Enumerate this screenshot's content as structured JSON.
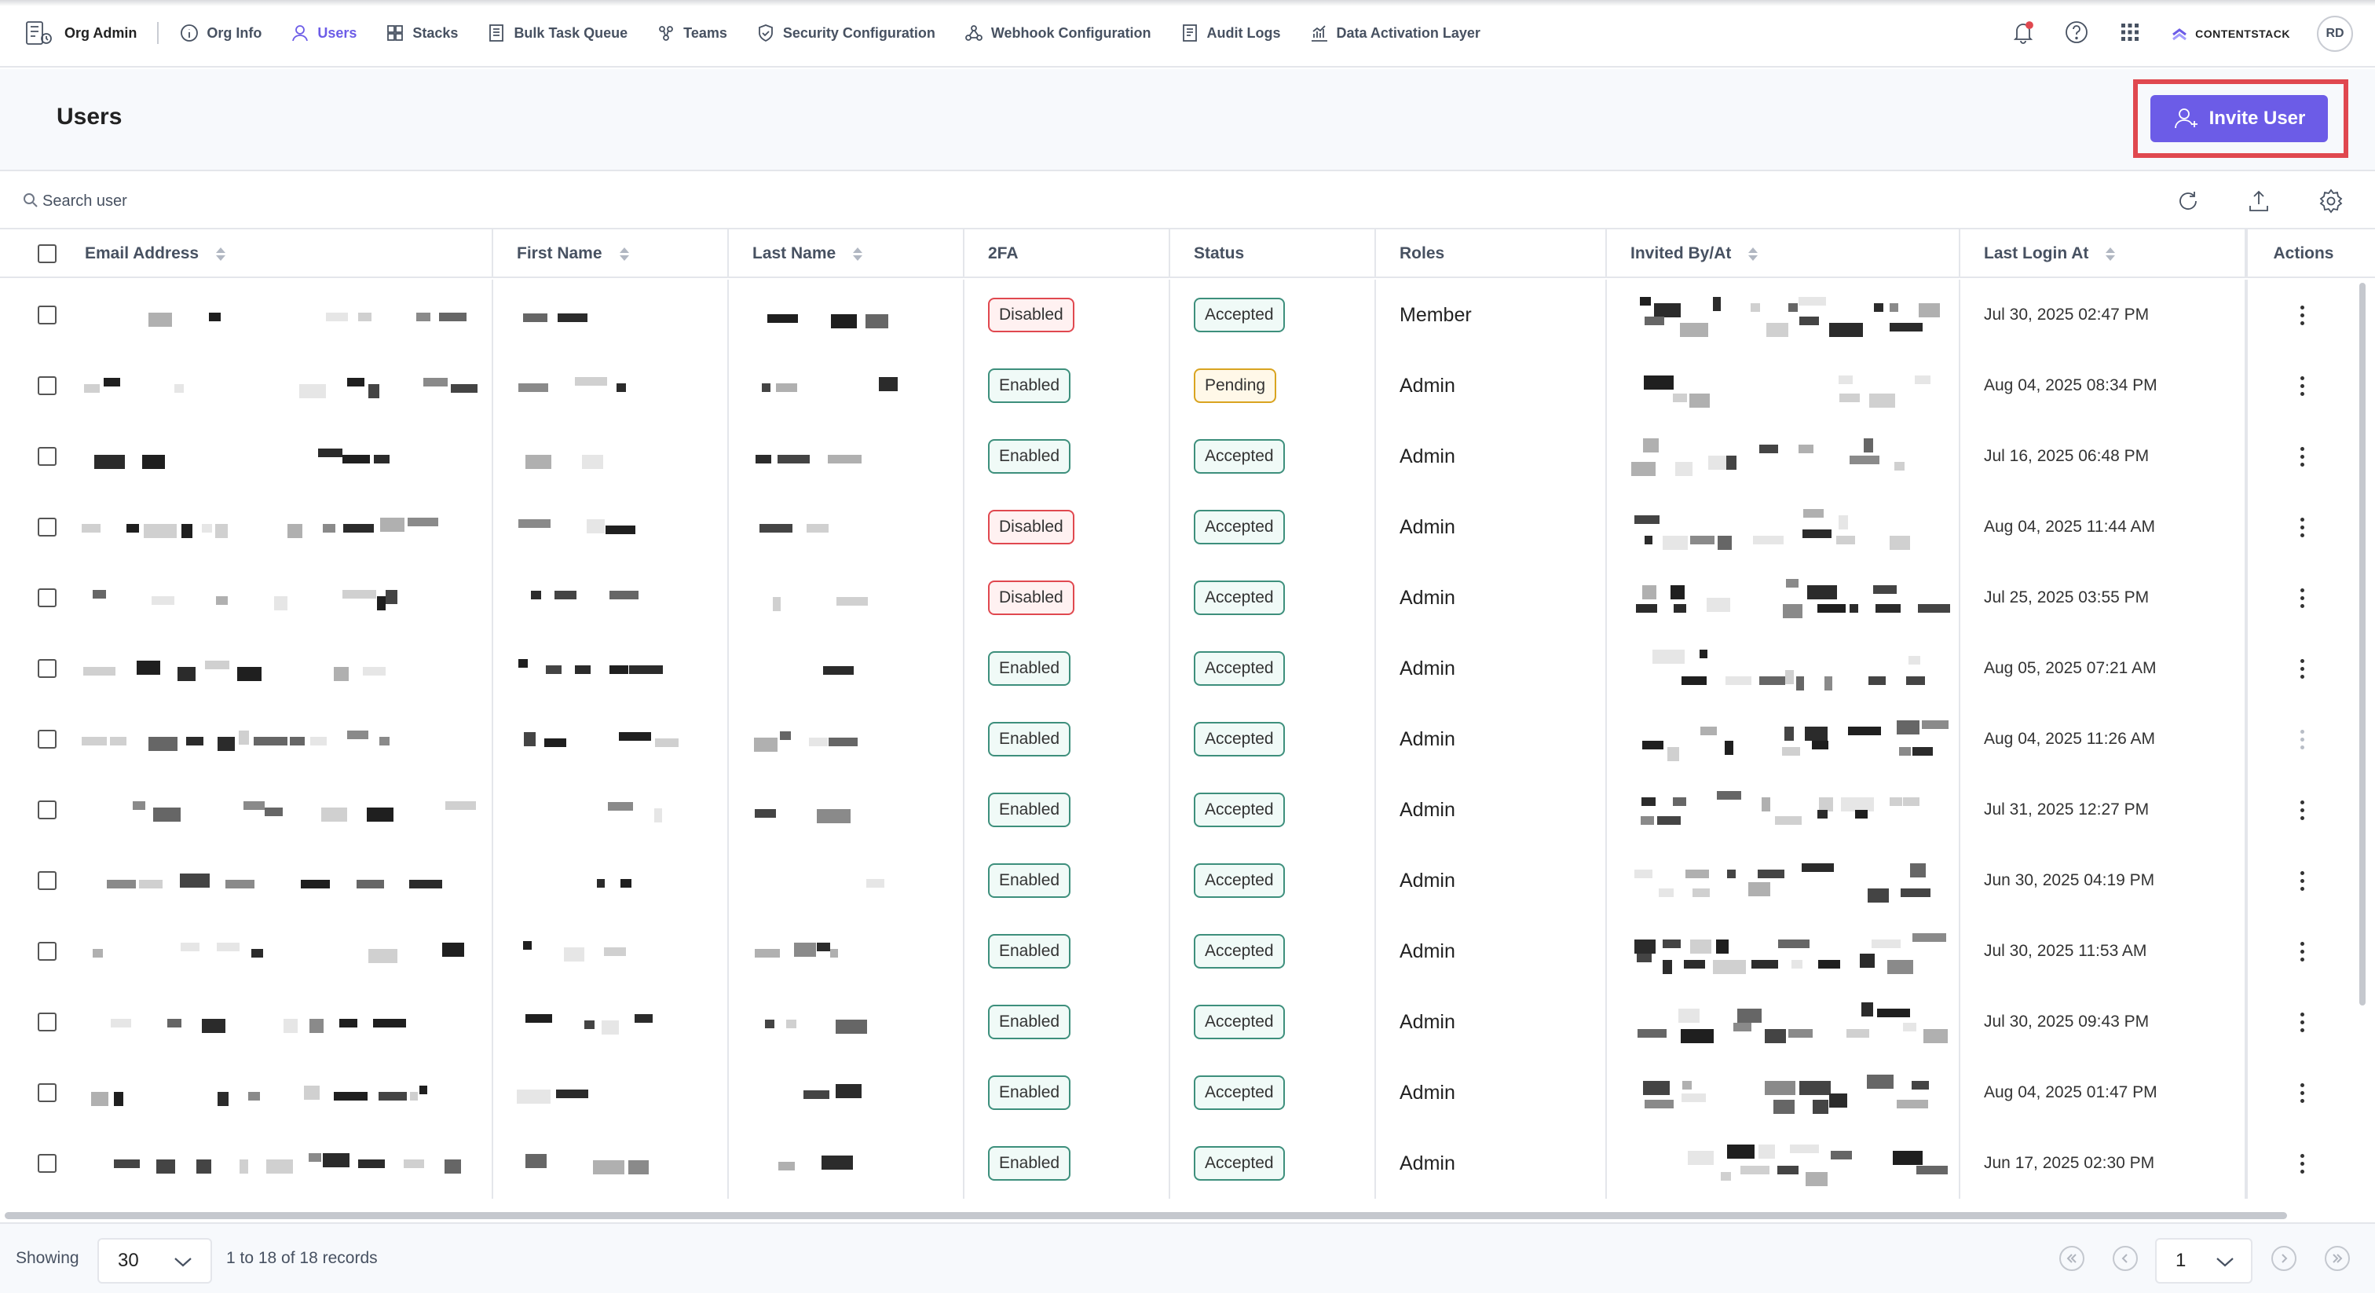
{
  "nav": {
    "brand": "Org Admin",
    "items": [
      {
        "label": "Org Info",
        "icon": "info-icon"
      },
      {
        "label": "Users",
        "icon": "user-icon",
        "active": true
      },
      {
        "label": "Stacks",
        "icon": "stacks-icon"
      },
      {
        "label": "Bulk Task Queue",
        "icon": "queue-icon"
      },
      {
        "label": "Teams",
        "icon": "teams-icon"
      },
      {
        "label": "Security Configuration",
        "icon": "shield-icon"
      },
      {
        "label": "Webhook Configuration",
        "icon": "webhook-icon"
      },
      {
        "label": "Audit Logs",
        "icon": "audit-log-icon"
      },
      {
        "label": "Data Activation Layer",
        "icon": "chart-icon"
      }
    ],
    "logo_text": "CONTENTSTACK",
    "avatar_initials": "RD"
  },
  "header": {
    "title": "Users",
    "invite_label": "Invite User",
    "accent": "#6c5ce7",
    "highlight_color": "#e0484f"
  },
  "search": {
    "placeholder": "Search user"
  },
  "table": {
    "columns": [
      "Email Address",
      "First Name",
      "Last Name",
      "2FA",
      "Status",
      "Roles",
      "Invited By/At",
      "Last Login At",
      "Actions"
    ],
    "rows": [
      {
        "twofa": "Disabled",
        "status": "Accepted",
        "role": "Member",
        "last_login": "Jul 30, 2025 02:47 PM"
      },
      {
        "twofa": "Enabled",
        "status": "Pending",
        "role": "Admin",
        "last_login": "Aug 04, 2025 08:34 PM"
      },
      {
        "twofa": "Enabled",
        "status": "Accepted",
        "role": "Admin",
        "last_login": "Jul 16, 2025 06:48 PM"
      },
      {
        "twofa": "Disabled",
        "status": "Accepted",
        "role": "Admin",
        "last_login": "Aug 04, 2025 11:44 AM"
      },
      {
        "twofa": "Disabled",
        "status": "Accepted",
        "role": "Admin",
        "last_login": "Jul 25, 2025 03:55 PM"
      },
      {
        "twofa": "Enabled",
        "status": "Accepted",
        "role": "Admin",
        "last_login": "Aug 05, 2025 07:21 AM"
      },
      {
        "twofa": "Enabled",
        "status": "Accepted",
        "role": "Admin",
        "last_login": "Aug 04, 2025 11:26 AM"
      },
      {
        "twofa": "Enabled",
        "status": "Accepted",
        "role": "Admin",
        "last_login": "Jul 31, 2025 12:27 PM"
      },
      {
        "twofa": "Enabled",
        "status": "Accepted",
        "role": "Admin",
        "last_login": "Jun 30, 2025 04:19 PM"
      },
      {
        "twofa": "Enabled",
        "status": "Accepted",
        "role": "Admin",
        "last_login": "Jul 30, 2025 11:53 AM"
      },
      {
        "twofa": "Enabled",
        "status": "Accepted",
        "role": "Admin",
        "last_login": "Jul 30, 2025 09:43 PM"
      },
      {
        "twofa": "Enabled",
        "status": "Accepted",
        "role": "Admin",
        "last_login": "Aug 04, 2025 01:47 PM"
      },
      {
        "twofa": "Enabled",
        "status": "Accepted",
        "role": "Admin",
        "last_login": "Jun 17, 2025 02:30 PM"
      }
    ]
  },
  "footer": {
    "showing_label": "Showing",
    "page_size": "30",
    "records_text": "1 to 18 of 18 records",
    "page": "1"
  }
}
